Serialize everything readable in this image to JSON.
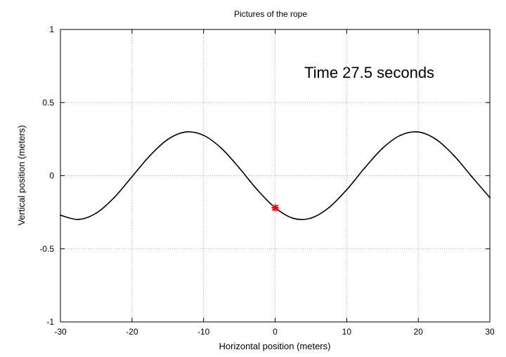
{
  "chart_data": {
    "type": "line",
    "title": "Pictures of the rope",
    "xlabel": "Horizontal position (meters)",
    "ylabel": "Vertical position (meters)",
    "xlim": [
      -30,
      30
    ],
    "ylim": [
      -1,
      1
    ],
    "xticks": [
      -30,
      -20,
      -10,
      0,
      10,
      20,
      30
    ],
    "yticks": [
      -1,
      -0.5,
      0,
      0.5,
      1
    ],
    "ytick_labels": [
      "-1",
      "-0.5",
      "0",
      "0.5",
      "1"
    ],
    "grid": true,
    "annotation": "Time 27.5 seconds",
    "series": [
      {
        "color": "#000000",
        "x": [
          -30,
          -27.5,
          -25,
          -22.5,
          -20,
          -17.5,
          -15,
          -12.5,
          -10,
          -7.5,
          -5,
          -2.5,
          0,
          2.5,
          5,
          7.5,
          10,
          12.5,
          15,
          17.5,
          20,
          22.5,
          25,
          27.5,
          30
        ],
        "y": [
          -0.27,
          -0.299,
          -0.256,
          -0.15,
          -0.007,
          0.137,
          0.248,
          0.299,
          0.276,
          0.187,
          0.052,
          -0.096,
          -0.219,
          -0.291,
          -0.29,
          -0.219,
          -0.096,
          0.052,
          0.187,
          0.276,
          0.299,
          0.248,
          0.137,
          -0.008,
          -0.15
        ]
      }
    ],
    "marker": {
      "x": 0,
      "y": -0.219,
      "color": "#ff0000",
      "symbol": "asterisk"
    }
  }
}
